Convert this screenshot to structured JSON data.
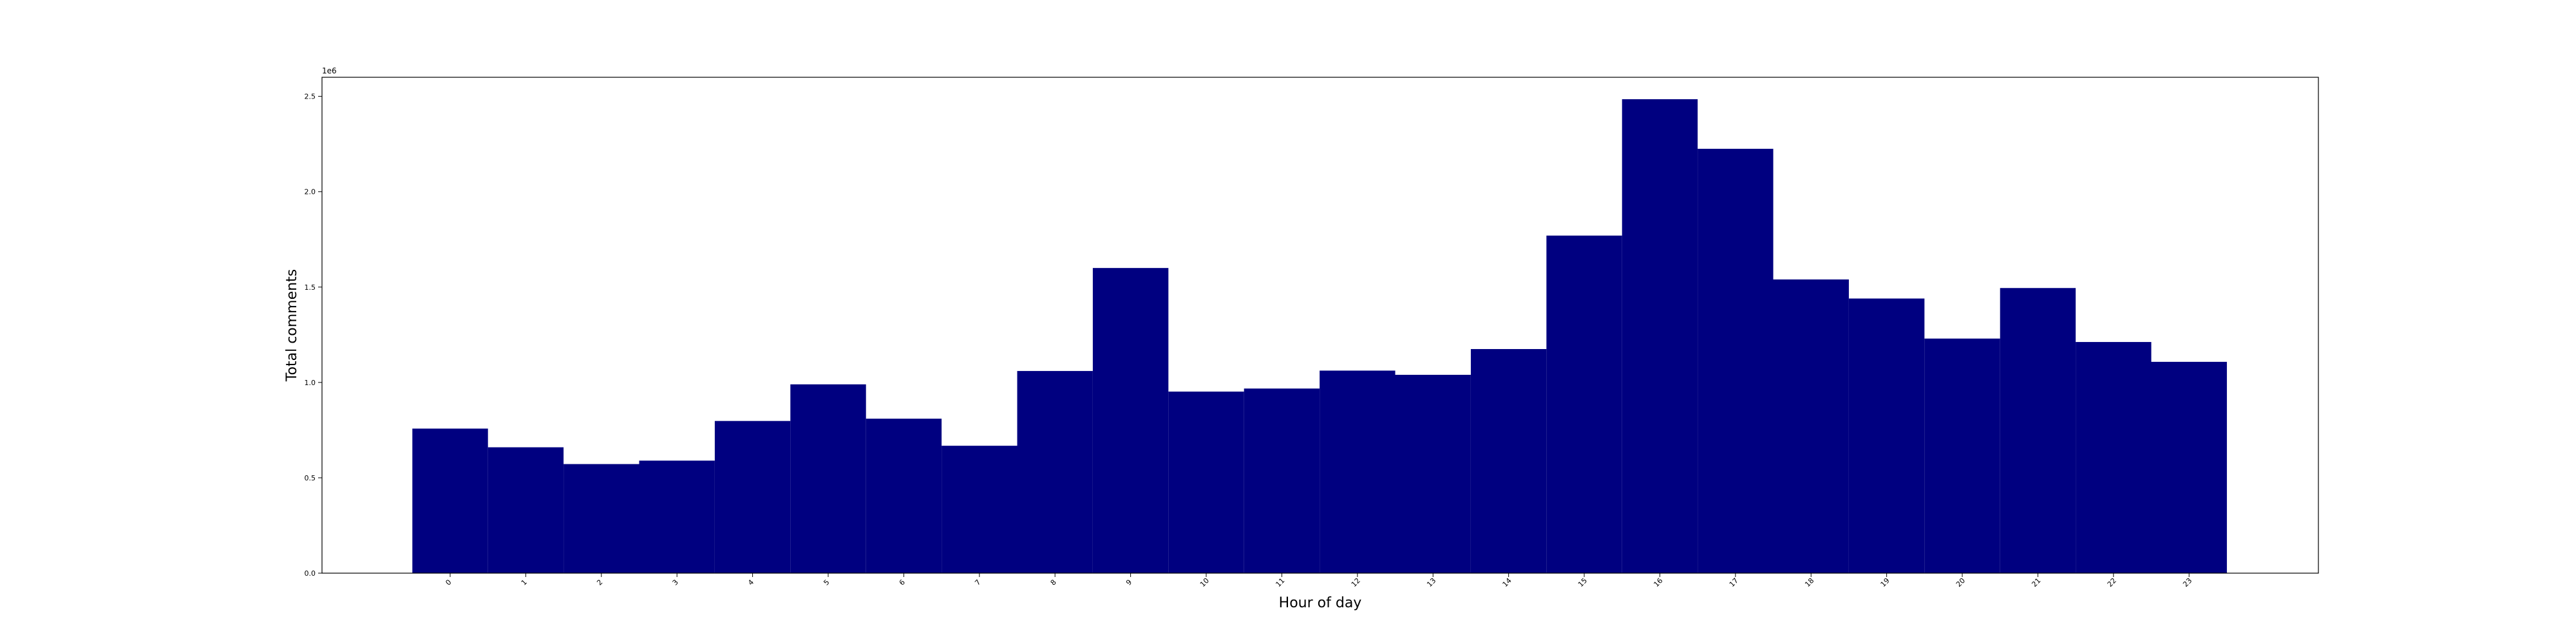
{
  "chart_data": {
    "type": "bar",
    "xlabel": "Hour of day",
    "ylabel": "Total comments",
    "y_offset_label": "1e6",
    "categories": [
      "0",
      "1",
      "2",
      "3",
      "4",
      "5",
      "6",
      "7",
      "8",
      "9",
      "10",
      "11",
      "12",
      "13",
      "14",
      "15",
      "16",
      "17",
      "18",
      "19",
      "20",
      "21",
      "22",
      "23"
    ],
    "values": [
      758000,
      660000,
      572000,
      590000,
      798000,
      990000,
      810000,
      668000,
      1060000,
      1600000,
      952000,
      968000,
      1062000,
      1040000,
      1175000,
      1770000,
      2485000,
      2225000,
      1540000,
      1440000,
      1230000,
      1495000,
      1212000,
      1108000
    ],
    "ylim": [
      0,
      2600000
    ],
    "yticks": [
      0,
      500000,
      1000000,
      1500000,
      2000000,
      2500000
    ],
    "ytick_labels": [
      "0.0",
      "0.5",
      "1.0",
      "1.5",
      "2.0",
      "2.5"
    ],
    "bar_color": "#000080",
    "grid": false
  }
}
